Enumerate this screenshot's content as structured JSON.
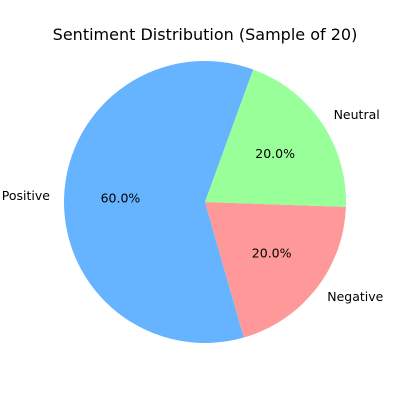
{
  "chart_data": {
    "type": "pie",
    "title": "Sentiment Distribution (Sample of 20)",
    "slices": [
      {
        "label": "Positive",
        "value": 60.0,
        "pct_label": "60.0%",
        "color": "#66b3ff"
      },
      {
        "label": "Negative",
        "value": 20.0,
        "pct_label": "20.0%",
        "color": "#ff9999"
      },
      {
        "label": "Neutral",
        "value": 20.0,
        "pct_label": "20.0%",
        "color": "#99ff99"
      }
    ],
    "start_angle_deg": 70,
    "direction": "counterclockwise",
    "legend": "none"
  }
}
